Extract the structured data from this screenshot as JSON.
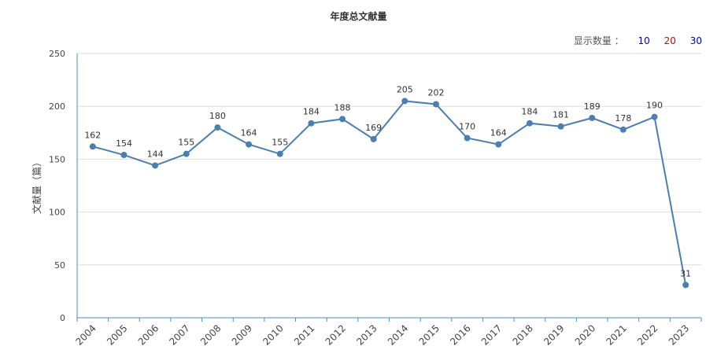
{
  "title": "年度总文献量",
  "display_count": {
    "label": "显示数量 ：",
    "options": [
      {
        "value": "10",
        "color": "#0000cc"
      },
      {
        "value": "20",
        "color": "#cc0000"
      },
      {
        "value": "30",
        "color": "#0000cc"
      }
    ]
  },
  "chart_data": {
    "type": "line",
    "title": "年度总文献量",
    "xlabel": "",
    "ylabel": "文献量（篇）",
    "ylim": [
      0,
      250
    ],
    "yticks": [
      0,
      50,
      100,
      150,
      200,
      250
    ],
    "grid": true,
    "categories": [
      "2004",
      "2005",
      "2006",
      "2007",
      "2008",
      "2009",
      "2010",
      "2011",
      "2012",
      "2013",
      "2014",
      "2015",
      "2016",
      "2017",
      "2018",
      "2019",
      "2020",
      "2021",
      "2022",
      "2023"
    ],
    "series": [
      {
        "color": "#4a7fb0",
        "values": [
          162,
          154,
          144,
          155,
          180,
          164,
          155,
          184,
          188,
          169,
          205,
          202,
          170,
          164,
          184,
          181,
          189,
          178,
          190,
          31
        ]
      }
    ]
  }
}
